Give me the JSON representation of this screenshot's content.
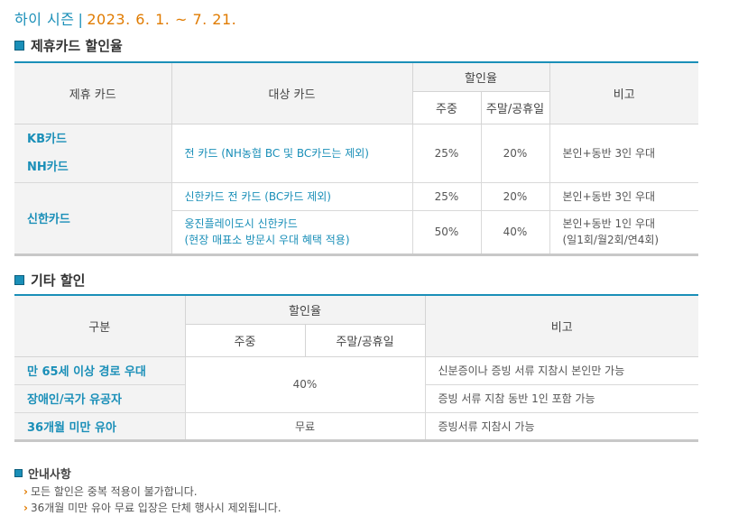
{
  "season": {
    "label": "하이 시즌",
    "separator": "|",
    "dates": "2023. 6. 1. ~ 7. 21."
  },
  "section1": {
    "title": "제휴카드 할인율",
    "headers": {
      "card": "제휴 카드",
      "target": "대상 카드",
      "rate": "할인율",
      "weekday": "주중",
      "weekend": "주말/공휴일",
      "note": "비고"
    },
    "rows": {
      "kb": "KB카드",
      "nh": "NH카드",
      "kbnh_target": "전 카드 (NH농협 BC 및 BC카드는 제외)",
      "kbnh_weekday": "25%",
      "kbnh_weekend": "20%",
      "kbnh_note": "본인+동반 3인 우대",
      "shinhan": "신한카드",
      "sh1_target": "신한카드 전 카드 (BC카드 제외)",
      "sh1_weekday": "25%",
      "sh1_weekend": "20%",
      "sh1_note": "본인+동반 3인 우대",
      "sh2_target_line1": "웅진플레이도시 신한카드",
      "sh2_target_line2": "(현장 매표소 방문시 우대 혜택 적용)",
      "sh2_weekday": "50%",
      "sh2_weekend": "40%",
      "sh2_note_line1": "본인+동반 1인 우대",
      "sh2_note_line2": "(일1회/월2회/연4회)"
    }
  },
  "section2": {
    "title": "기타 할인",
    "headers": {
      "category": "구분",
      "rate": "할인율",
      "weekday": "주중",
      "weekend": "주말/공휴일",
      "note": "비고"
    },
    "rows": {
      "senior": "만 65세 이상 경로 우대",
      "disabled": "장애인/국가 유공자",
      "shared_rate": "40%",
      "senior_note": "신분증이나 증빙 서류 지참시 본인만 가능",
      "disabled_note": "증빙 서류 지참 동반 1인 포함 가능",
      "infant": "36개월 미만 유아",
      "infant_rate": "무료",
      "infant_note": "증빙서류 지참시 가능"
    }
  },
  "notice": {
    "title": "안내사항",
    "items": [
      "모든 할인은 중복 적용이 불가합니다.",
      "36개월 미만 유아 무료 입장은 단체 행사시 제외됩니다."
    ]
  }
}
